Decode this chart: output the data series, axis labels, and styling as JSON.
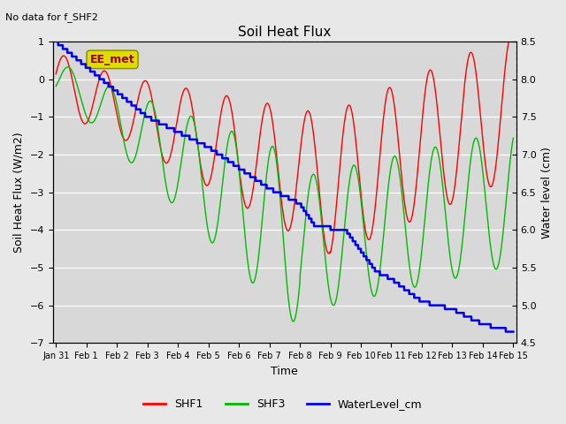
{
  "title": "Soil Heat Flux",
  "top_left_text": "No data for f_SHF2",
  "xlabel": "Time",
  "ylabel_left": "Soil Heat Flux (W/m2)",
  "ylabel_right": "Water level (cm)",
  "ylim_left": [
    -7.0,
    1.0
  ],
  "ylim_right": [
    4.5,
    8.5
  ],
  "yticks_left": [
    -7.0,
    -6.0,
    -5.0,
    -4.0,
    -3.0,
    -2.0,
    -1.0,
    0.0,
    1.0
  ],
  "yticks_right": [
    4.5,
    5.0,
    5.5,
    6.0,
    6.5,
    7.0,
    7.5,
    8.0,
    8.5
  ],
  "x_tick_labels": [
    "Jan 31",
    "Feb 1",
    "Feb 2",
    "Feb 3",
    "Feb 4",
    "Feb 5",
    "Feb 6",
    "Feb 7",
    "Feb 8",
    "Feb 9",
    "Feb 10",
    "Feb 11",
    "Feb 12",
    "Feb 13",
    "Feb 14",
    "Feb 15"
  ],
  "annotation_box_text": "EE_met",
  "shf1_color": "#ff0000",
  "shf3_color": "#00bb00",
  "water_color": "#0000ee",
  "plot_bg_color": "#d8d8d8",
  "fig_bg_color": "#e8e8e8",
  "grid_color": "#ffffff",
  "annotation_bg": "#dddd00",
  "annotation_text_color": "#990000"
}
